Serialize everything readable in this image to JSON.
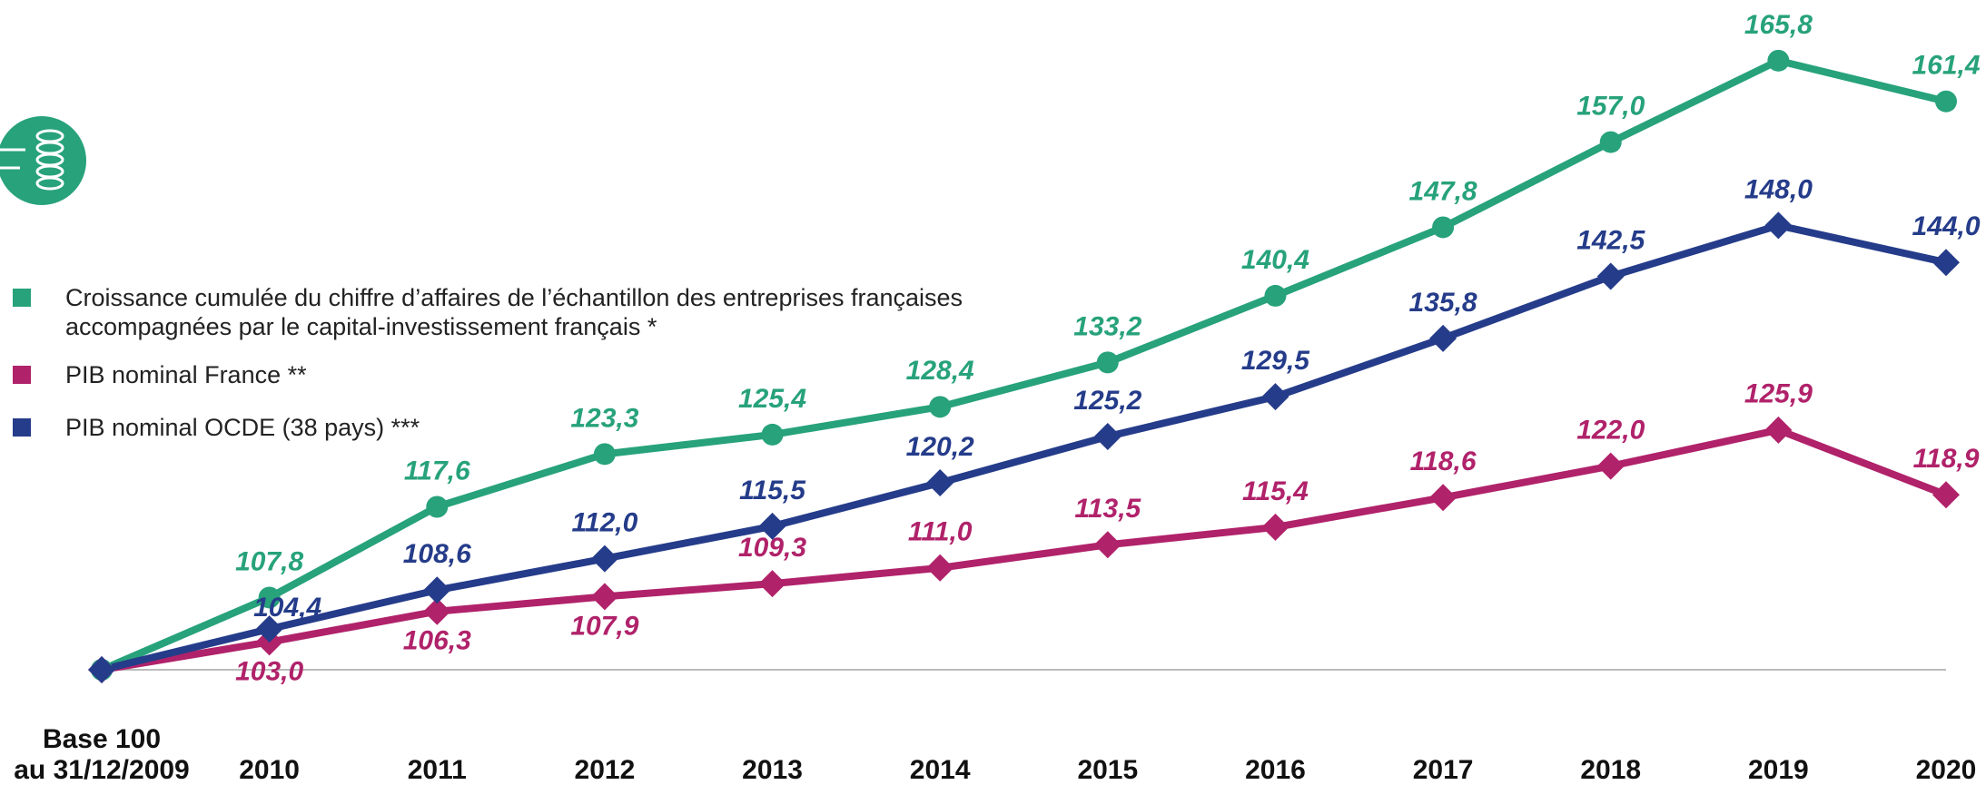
{
  "chart_data": {
    "type": "line",
    "categories": [
      "Base 100\nau 31/12/2009",
      "2010",
      "2011",
      "2012",
      "2013",
      "2014",
      "2015",
      "2016",
      "2017",
      "2018",
      "2019",
      "2020"
    ],
    "ylim": [
      100,
      170
    ],
    "series": [
      {
        "name": "Croissance cumulée du chiffre d’affaires de l’échantillon des entreprises françaises accompagnées par le capital-investissement français *",
        "color": "#27a27b",
        "marker": "circle",
        "values": [
          100,
          107.8,
          117.6,
          123.3,
          125.4,
          128.4,
          133.2,
          140.4,
          147.8,
          157.0,
          165.8,
          161.4
        ],
        "value_labels": [
          null,
          "107,8",
          "117,6",
          "123,3",
          "125,4",
          "128,4",
          "133,2",
          "140,4",
          "147,8",
          "157,0",
          "165,8",
          "161,4"
        ]
      },
      {
        "name": "PIB nominal France **",
        "color": "#b0226a",
        "marker": "diamond",
        "values": [
          100,
          103.0,
          106.3,
          107.9,
          109.3,
          111.0,
          113.5,
          115.4,
          118.6,
          122.0,
          125.9,
          118.9
        ],
        "value_labels": [
          null,
          "103,0",
          "106,3",
          "107,9",
          "109,3",
          "111,0",
          "113,5",
          "115,4",
          "118,6",
          "122,0",
          "125,9",
          "118,9"
        ]
      },
      {
        "name": "PIB nominal OCDE (38 pays) ***",
        "color": "#253c8a",
        "marker": "diamond",
        "values": [
          100,
          104.4,
          108.6,
          112.0,
          115.5,
          120.2,
          125.2,
          129.5,
          135.8,
          142.5,
          148.0,
          144.0
        ],
        "value_labels": [
          null,
          "104,4",
          "108,6",
          "112,0",
          "115,5",
          "120,2",
          "125,2",
          "129,5",
          "135,8",
          "142,5",
          "148,0",
          "144,0"
        ]
      }
    ]
  }
}
